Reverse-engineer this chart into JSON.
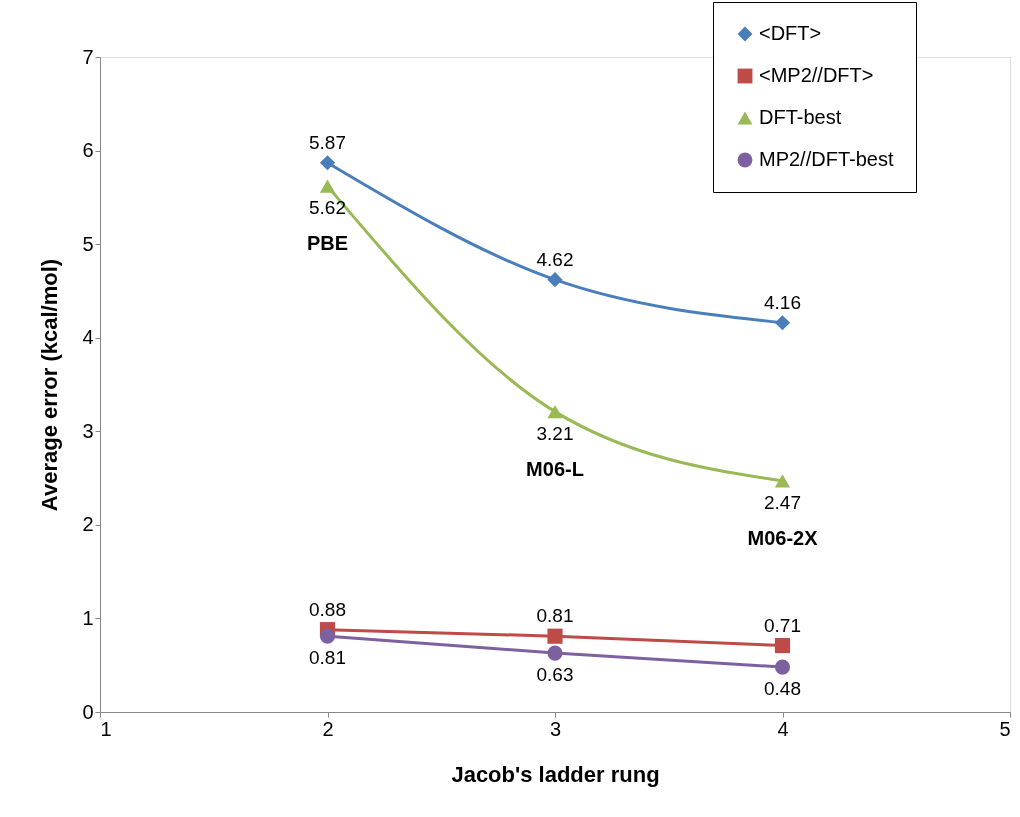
{
  "chart_data": {
    "type": "line",
    "xlabel": "Jacob's ladder rung",
    "ylabel": "Average error (kcal/mol)",
    "x": [
      2,
      3,
      4
    ],
    "xlim": [
      1,
      5
    ],
    "xticks": [
      1,
      2,
      3,
      4,
      5
    ],
    "ylim": [
      0,
      7
    ],
    "yticks": [
      0,
      1,
      2,
      3,
      4,
      5,
      6,
      7
    ],
    "grid": false,
    "legend": "top right",
    "data_labels": true,
    "line_style": "solid",
    "series": [
      {
        "name": "<DFT>",
        "color": "#4a7ebb",
        "marker": "diamond",
        "values": [
          5.87,
          4.62,
          4.16
        ]
      },
      {
        "name": "<MP2//DFT>",
        "color": "#be4b48",
        "marker": "square",
        "values": [
          0.88,
          0.81,
          0.71
        ]
      },
      {
        "name": "DFT-best",
        "color": "#98b954",
        "marker": "triangle",
        "values": [
          5.62,
          3.21,
          2.47
        ]
      },
      {
        "name": "MP2//DFT-best",
        "color": "#7d60a0",
        "marker": "circle",
        "values": [
          0.81,
          0.63,
          0.48
        ]
      }
    ],
    "annotations": [
      {
        "text": "PBE",
        "x": 2,
        "y": 5.62
      },
      {
        "text": "M06-L",
        "x": 3,
        "y": 3.21
      },
      {
        "text": "M06-2X",
        "x": 4,
        "y": 2.47
      }
    ]
  }
}
